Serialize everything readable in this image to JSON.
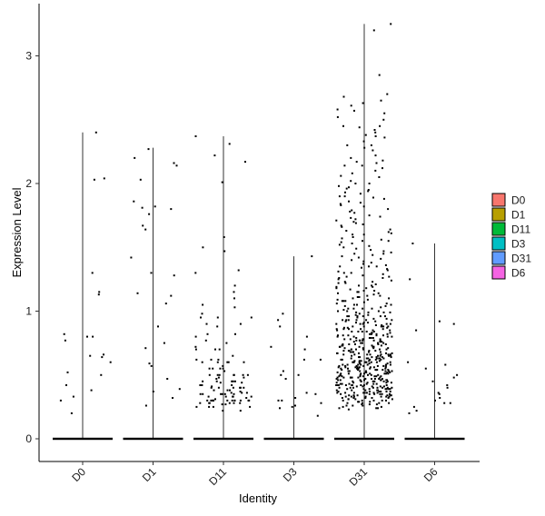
{
  "chart_data": {
    "type": "violin-jitter",
    "title": "",
    "xlabel": "Identity",
    "ylabel": "Expression Level",
    "ylim": [
      -0.18,
      3.3
    ],
    "yticks": [
      0,
      1,
      2,
      3
    ],
    "grid": false,
    "legend_position": "right",
    "categories": [
      "D0",
      "D1",
      "D11",
      "D3",
      "D31",
      "D6"
    ],
    "legend": [
      {
        "name": "D0",
        "color": "#F8766D"
      },
      {
        "name": "D1",
        "color": "#B79F00"
      },
      {
        "name": "D11",
        "color": "#00BA38"
      },
      {
        "name": "D3",
        "color": "#00BFC4"
      },
      {
        "name": "D31",
        "color": "#619CFF"
      },
      {
        "name": "D6",
        "color": "#F564E3"
      }
    ],
    "series": [
      {
        "category": "D0",
        "max": 2.4,
        "nonzero": [
          0.38,
          0.2,
          0.65,
          0.6,
          0.8,
          1.3,
          0.82,
          2.04,
          2.03,
          0.5,
          2.4,
          0.33,
          1.15,
          0.77,
          0.8,
          0.52,
          0.42,
          1.13,
          0.66,
          0.64,
          0.3
        ]
      },
      {
        "category": "D1",
        "max": 2.28,
        "nonzero": [
          0.57,
          1.06,
          1.64,
          2.03,
          0.71,
          2.14,
          2.16,
          2.27,
          1.76,
          1.8,
          2.2,
          1.86,
          1.67,
          0.26,
          0.37,
          0.39,
          1.3,
          0.47,
          1.14,
          0.59,
          1.28,
          1.12,
          1.81,
          1.82,
          0.32,
          0.75,
          1.42,
          0.88
        ]
      },
      {
        "category": "D11",
        "max": 2.37,
        "nonzero": [
          0.35,
          0.5,
          0.6,
          1.03,
          0.28,
          0.45,
          0.95,
          0.4,
          0.3,
          0.7,
          0.25,
          0.55,
          0.35,
          0.65,
          1.3,
          0.4,
          0.3,
          0.48,
          0.82,
          0.22,
          2.01,
          0.27,
          0.5,
          0.38,
          0.3,
          0.62,
          0.75,
          0.44,
          1.58,
          0.33,
          0.41,
          0.57,
          0.3,
          0.9,
          1.47,
          0.32,
          0.28,
          0.7,
          0.36,
          0.45,
          0.5,
          0.9,
          1.15,
          0.62,
          0.4,
          0.33,
          0.55,
          0.77,
          0.3,
          0.45,
          0.6,
          0.38,
          1.1,
          0.28,
          0.5,
          0.42,
          0.25,
          0.35,
          0.3,
          0.55,
          0.48,
          0.33,
          0.4,
          0.62,
          0.5,
          0.8,
          0.3,
          0.45,
          0.36,
          0.28,
          0.95,
          0.6,
          0.4,
          0.3,
          0.72,
          0.5,
          0.35,
          0.42,
          0.28,
          0.33,
          0.22,
          0.3,
          0.36,
          0.5,
          0.45,
          0.6,
          0.3,
          0.4,
          0.55,
          0.25,
          0.35,
          0.31,
          0.47,
          0.28,
          0.38,
          0.42,
          0.33,
          0.25,
          0.3,
          0.53,
          0.44,
          0.37,
          0.3,
          0.27,
          0.35,
          1.5,
          2.17,
          2.22,
          2.37,
          2.31,
          0.88,
          0.95,
          1.05,
          0.98,
          0.6,
          1.32,
          0.82,
          1.2,
          0.7
        ]
      },
      {
        "category": "D3",
        "max": 1.43,
        "nonzero": [
          0.93,
          0.25,
          0.18,
          0.53,
          0.72,
          0.35,
          0.47,
          0.28,
          0.3,
          0.24,
          0.5,
          0.62,
          0.88,
          0.8,
          0.98,
          1.43,
          0.3,
          0.26,
          0.36,
          0.32,
          0.7,
          0.62,
          0.5
        ]
      },
      {
        "category": "D31",
        "max": 3.25,
        "nonzero": [
          2.68,
          2.85,
          2.52,
          2.45,
          2.33,
          2.14,
          2.17,
          2.1,
          2.3,
          1.95,
          2.0,
          1.92,
          1.85,
          1.75,
          1.7,
          1.62,
          1.55,
          1.48,
          1.42,
          1.36,
          1.3,
          1.25,
          1.2,
          1.15,
          1.1,
          1.05,
          1.0,
          0.98,
          0.95,
          0.92,
          0.9,
          0.88,
          0.85,
          0.82,
          0.8,
          0.78,
          0.75,
          0.72,
          0.7,
          0.68,
          0.65,
          0.62,
          0.6,
          0.58,
          0.55,
          0.52,
          0.5,
          0.48,
          0.45,
          0.42,
          0.4,
          0.38,
          0.35,
          0.33,
          0.3,
          0.28,
          0.25,
          0.23,
          2.7,
          2.65,
          2.61,
          2.57,
          2.55,
          2.45,
          2.4,
          2.37,
          2.3,
          2.18,
          2.12,
          2.05,
          1.97,
          1.9,
          1.83,
          1.78,
          1.72,
          1.68,
          1.6,
          1.52,
          1.45,
          1.38,
          1.33,
          1.27,
          1.22,
          1.17,
          1.12,
          1.07,
          1.02,
          0.97,
          0.93,
          0.89,
          0.86,
          0.83,
          0.79,
          0.76,
          0.73,
          0.69,
          0.66,
          0.63,
          0.59,
          0.56,
          0.53,
          0.49,
          0.46,
          0.43,
          0.39,
          0.36,
          0.32,
          0.29,
          0.26,
          3.25,
          3.2,
          2.63,
          2.42,
          2.38,
          2.28,
          2.22,
          2.16,
          2.08,
          2.02,
          1.98,
          1.93,
          1.88,
          1.82,
          1.77,
          1.71,
          1.66,
          1.61,
          1.56,
          1.51,
          1.46,
          1.41,
          1.35,
          1.29,
          1.24,
          1.19,
          1.13,
          1.08,
          1.03,
          0.99,
          0.94,
          0.91,
          0.87,
          0.84,
          0.81,
          0.77,
          0.74,
          0.71,
          0.67,
          0.64,
          0.61,
          0.57,
          0.54,
          0.51,
          0.47,
          0.44,
          0.41,
          0.37,
          0.34,
          0.31,
          0.27,
          0.24,
          2.58,
          2.5,
          2.44,
          2.36,
          2.26,
          2.2,
          2.14,
          2.06,
          2.0,
          1.94,
          1.89,
          1.84,
          1.79,
          1.73,
          1.67,
          1.63,
          1.57,
          1.53,
          1.47,
          1.43,
          1.37,
          1.32,
          1.26,
          1.21,
          1.16,
          1.11,
          1.06,
          1.01,
          0.96,
          0.92,
          0.88,
          0.85,
          0.81,
          0.78,
          0.74,
          0.7,
          0.67,
          0.63,
          0.6,
          0.56,
          0.53,
          0.49,
          0.46,
          0.42,
          0.39,
          0.35,
          0.32,
          0.28,
          0.25,
          1.96,
          1.9,
          1.86,
          1.8,
          1.74,
          1.69,
          1.64,
          1.58,
          1.54,
          1.49,
          1.44,
          1.39,
          1.34,
          1.28,
          1.23,
          1.18,
          1.14,
          1.09,
          1.04,
          1.0,
          0.96,
          0.93,
          0.9,
          0.87,
          0.84,
          0.8,
          0.77,
          0.73,
          0.7,
          0.67,
          0.64,
          0.6,
          0.57,
          0.54,
          0.5,
          0.47,
          0.44,
          0.4,
          0.37,
          0.34,
          0.3,
          0.27,
          0.24,
          1.6,
          1.55,
          1.5,
          1.45,
          1.4,
          1.35,
          1.3,
          1.26,
          1.22,
          1.18,
          1.14,
          1.1,
          1.06,
          1.02,
          0.99,
          0.96,
          0.93,
          0.9,
          0.87,
          0.84,
          0.81,
          0.78,
          0.75,
          0.72,
          0.69,
          0.66,
          0.63,
          0.6,
          0.57,
          0.54,
          0.51,
          0.48,
          0.45,
          0.42,
          0.39,
          0.36,
          0.33,
          0.3,
          0.27,
          0.24,
          1.35,
          1.31,
          1.27,
          1.23,
          1.19,
          1.15,
          1.11,
          1.08,
          1.05,
          1.02,
          0.99,
          0.96,
          0.93,
          0.9,
          0.88,
          0.85,
          0.82,
          0.8,
          0.77,
          0.74,
          0.72,
          0.69,
          0.66,
          0.64,
          0.61,
          0.58,
          0.56,
          0.53,
          0.5,
          0.48,
          0.45,
          0.42,
          0.4,
          0.37,
          0.34,
          0.32,
          0.29,
          0.26,
          1.2,
          1.16,
          1.12,
          1.09,
          1.05,
          1.02,
          0.99,
          0.96,
          0.93,
          0.91,
          0.88,
          0.86,
          0.83,
          0.81,
          0.78,
          0.76,
          0.73,
          0.71,
          0.68,
          0.66,
          0.63,
          0.61,
          0.58,
          0.56,
          0.53,
          0.51,
          0.48,
          0.46,
          0.43,
          0.41,
          0.38,
          0.36,
          0.33,
          0.31,
          0.28,
          0.26,
          1.08,
          1.04,
          1.0,
          0.97,
          0.94,
          0.91,
          0.89,
          0.86,
          0.84,
          0.82,
          0.79,
          0.77,
          0.75,
          0.72,
          0.7,
          0.68,
          0.65,
          0.63,
          0.61,
          0.58,
          0.56,
          0.54,
          0.51,
          0.49,
          0.47,
          0.44,
          0.42,
          0.4,
          0.37,
          0.35,
          0.33,
          0.3,
          0.28,
          0.96,
          0.93,
          0.9,
          0.88,
          0.86,
          0.83,
          0.81,
          0.79,
          0.77,
          0.74,
          0.72,
          0.7,
          0.68,
          0.66,
          0.64,
          0.62,
          0.6,
          0.58,
          0.56,
          0.54,
          0.52,
          0.5,
          0.48,
          0.46,
          0.44,
          0.42,
          0.4,
          0.38,
          0.36,
          0.34,
          0.32,
          0.3,
          0.88,
          0.86,
          0.84,
          0.82,
          0.8,
          0.78,
          0.76,
          0.74,
          0.72,
          0.7,
          0.68,
          0.66,
          0.64,
          0.62,
          0.6,
          0.58,
          0.57,
          0.55,
          0.53,
          0.51,
          0.49,
          0.47,
          0.45,
          0.43,
          0.41,
          0.39,
          0.37,
          0.35,
          0.33,
          0.31,
          0.29,
          0.79,
          0.77,
          0.75,
          0.73,
          0.71,
          0.69,
          0.67,
          0.65,
          0.63,
          0.61,
          0.6,
          0.58,
          0.56,
          0.55,
          0.53,
          0.51,
          0.5,
          0.48,
          0.46,
          0.45,
          0.43,
          0.41,
          0.4,
          0.38,
          0.36,
          0.35,
          0.33,
          0.31,
          0.73,
          0.71,
          0.69,
          0.67,
          0.65,
          0.64,
          0.62,
          0.6,
          0.59,
          0.57,
          0.55,
          0.54,
          0.52,
          0.51,
          0.49,
          0.47,
          0.46,
          0.44,
          0.42,
          0.41,
          0.39,
          0.37,
          0.36,
          0.34,
          0.32,
          0.66,
          0.65,
          0.63,
          0.62,
          0.6,
          0.58,
          0.57,
          0.55,
          0.54,
          0.52,
          0.51,
          0.49,
          0.48,
          0.46,
          0.45,
          0.43,
          0.42,
          0.4,
          0.39,
          0.37,
          0.36,
          0.34,
          0.33,
          0.6,
          0.59,
          0.57,
          0.56,
          0.55,
          0.53,
          0.52,
          0.5,
          0.49,
          0.47,
          0.46,
          0.45,
          0.43,
          0.42,
          0.4,
          0.39,
          0.38,
          0.36,
          0.35
        ]
      },
      {
        "category": "D6",
        "max": 1.53,
        "nonzero": [
          1.25,
          0.35,
          0.28,
          0.85,
          0.58,
          0.5,
          1.53,
          0.45,
          0.32,
          0.6,
          0.92,
          0.3,
          0.48,
          0.4,
          0.25,
          0.2,
          0.55,
          0.9,
          0.22,
          0.36,
          0.42,
          0.28
        ]
      }
    ]
  }
}
